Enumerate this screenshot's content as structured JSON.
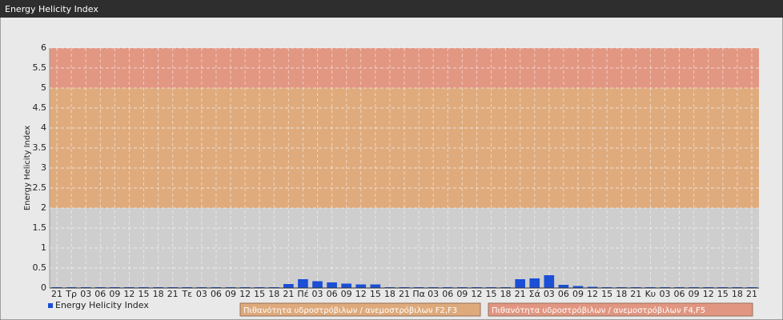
{
  "header": {
    "title": "Energy Helicity Index"
  },
  "chart_data": {
    "type": "bar",
    "y_label": "Energy Helicity Index",
    "categories": [
      "21",
      "Τρ",
      "03",
      "06",
      "09",
      "12",
      "15",
      "18",
      "21",
      "Τε",
      "03",
      "06",
      "09",
      "12",
      "15",
      "18",
      "21",
      "Πέ",
      "03",
      "06",
      "09",
      "12",
      "15",
      "18",
      "21",
      "Πα",
      "03",
      "06",
      "09",
      "12",
      "15",
      "18",
      "21",
      "Σά",
      "03",
      "06",
      "09",
      "12",
      "15",
      "18",
      "21",
      "Κυ",
      "03",
      "06",
      "09",
      "12",
      "15",
      "18",
      "21"
    ],
    "series": [
      {
        "name": "Energy Helicity Index",
        "color": "#1a4fd6",
        "values": [
          0.02,
          0.02,
          0.02,
          0.02,
          0.02,
          0.02,
          0.02,
          0.02,
          0.02,
          0.02,
          0.02,
          0.02,
          0.02,
          0.02,
          0.02,
          0.02,
          0.1,
          0.22,
          0.17,
          0.14,
          0.11,
          0.09,
          0.09,
          0.02,
          0.02,
          0.02,
          0.02,
          0.02,
          0.02,
          0.02,
          0.02,
          0.02,
          0.22,
          0.24,
          0.32,
          0.08,
          0.05,
          0.03,
          0.02,
          0.02,
          0.02,
          0.02,
          0.02,
          0.02,
          0.02,
          0.02,
          0.02,
          0.02,
          0.02
        ]
      }
    ],
    "bands": [
      {
        "from": 0,
        "to": 2,
        "color": "#c9c9c9"
      },
      {
        "from": 2,
        "to": 5,
        "color": "#dda06a",
        "name": "Πιθανότητα υδροστρόβιλων / ανεμοστρόβιλων F2,F3"
      },
      {
        "from": 5,
        "to": 6,
        "color": "#e08870",
        "name": "Πιθανότητα υδροστρόβιλων / ανεμοστρόβιλων F4,F5"
      }
    ],
    "ylim": [
      0,
      6
    ],
    "yticks": [
      0,
      0.5,
      1,
      1.5,
      2,
      2.5,
      3,
      3.5,
      4,
      4.5,
      5,
      5.5,
      6
    ],
    "grid": true
  }
}
